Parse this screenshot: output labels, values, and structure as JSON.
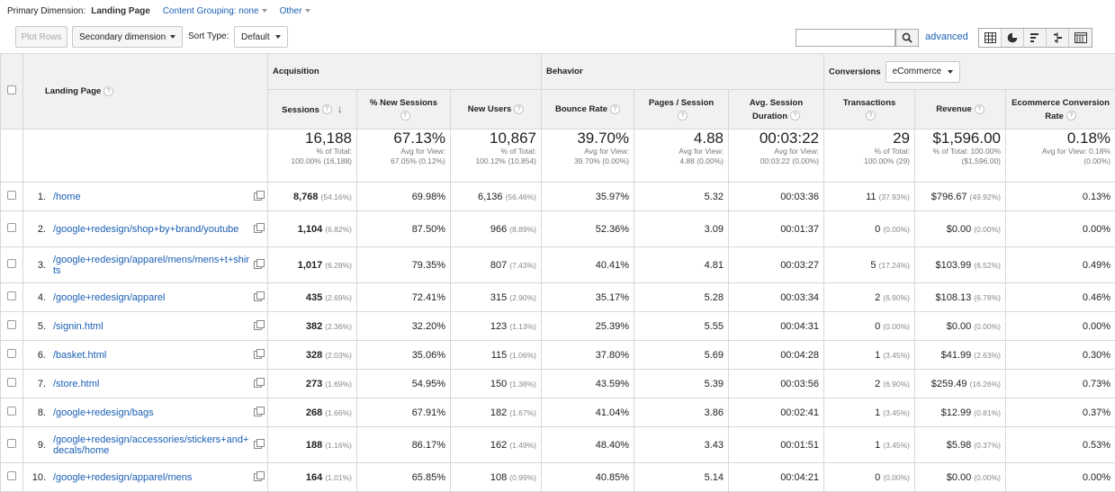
{
  "dimension_bar": {
    "primary_label": "Primary Dimension:",
    "primary_current": "Landing Page",
    "content_grouping": "Content Grouping: none",
    "other": "Other"
  },
  "toolbar": {
    "plot_rows": "Plot Rows",
    "secondary_dimension": "Secondary dimension",
    "sort_type_label": "Sort Type:",
    "sort_type_value": "Default",
    "search_value": "",
    "advanced": "advanced",
    "view_icons": [
      "table-view-icon",
      "pie-view-icon",
      "performance-view-icon",
      "comparison-view-icon",
      "pivot-view-icon"
    ]
  },
  "table": {
    "landing_page_header": "Landing Page",
    "groups": {
      "acquisition": "Acquisition",
      "behavior": "Behavior",
      "conversions": "Conversions",
      "conversions_select": "eCommerce"
    },
    "columns": [
      "Sessions",
      "% New Sessions",
      "New Users",
      "Bounce Rate",
      "Pages / Session",
      "Avg. Session Duration",
      "Transactions",
      "Revenue",
      "Ecommerce Conversion Rate"
    ],
    "totals": [
      {
        "value": "16,188",
        "sub1": "% of Total:",
        "sub2": "100.00% (16,188)"
      },
      {
        "value": "67.13%",
        "sub1": "Avg for View:",
        "sub2": "67.05% (0.12%)"
      },
      {
        "value": "10,867",
        "sub1": "% of Total:",
        "sub2": "100.12% (10,854)"
      },
      {
        "value": "39.70%",
        "sub1": "Avg for View:",
        "sub2": "39.70% (0.00%)"
      },
      {
        "value": "4.88",
        "sub1": "Avg for View:",
        "sub2": "4.88 (0.00%)"
      },
      {
        "value": "00:03:22",
        "sub1": "Avg for View:",
        "sub2": "00:03:22 (0.00%)"
      },
      {
        "value": "29",
        "sub1": "% of Total:",
        "sub2": "100.00% (29)"
      },
      {
        "value": "$1,596.00",
        "sub1": "% of Total: 100.00%",
        "sub2": "($1,596.00)"
      },
      {
        "value": "0.18%",
        "sub1": "Avg for View: 0.18%",
        "sub2": "(0.00%)"
      }
    ],
    "rows": [
      {
        "n": "1.",
        "page": "/home",
        "sessions": "8,768",
        "sessions_pct": "(54.16%)",
        "new_sessions": "69.98%",
        "new_users": "6,136",
        "new_users_pct": "(56.46%)",
        "bounce": "35.97%",
        "pps": "5.32",
        "dur": "00:03:36",
        "tx": "11",
        "tx_pct": "(37.93%)",
        "rev": "$796.67",
        "rev_pct": "(49.92%)",
        "conv": "0.13%"
      },
      {
        "n": "2.",
        "page": "/google+redesign/shop+by+brand/youtube",
        "sessions": "1,104",
        "sessions_pct": "(6.82%)",
        "new_sessions": "87.50%",
        "new_users": "966",
        "new_users_pct": "(8.89%)",
        "bounce": "52.36%",
        "pps": "3.09",
        "dur": "00:01:37",
        "tx": "0",
        "tx_pct": "(0.00%)",
        "rev": "$0.00",
        "rev_pct": "(0.00%)",
        "conv": "0.00%"
      },
      {
        "n": "3.",
        "page": "/google+redesign/apparel/mens/mens+t+shirts",
        "sessions": "1,017",
        "sessions_pct": "(6.28%)",
        "new_sessions": "79.35%",
        "new_users": "807",
        "new_users_pct": "(7.43%)",
        "bounce": "40.41%",
        "pps": "4.81",
        "dur": "00:03:27",
        "tx": "5",
        "tx_pct": "(17.24%)",
        "rev": "$103.99",
        "rev_pct": "(6.52%)",
        "conv": "0.49%"
      },
      {
        "n": "4.",
        "page": "/google+redesign/apparel",
        "sessions": "435",
        "sessions_pct": "(2.69%)",
        "new_sessions": "72.41%",
        "new_users": "315",
        "new_users_pct": "(2.90%)",
        "bounce": "35.17%",
        "pps": "5.28",
        "dur": "00:03:34",
        "tx": "2",
        "tx_pct": "(6.90%)",
        "rev": "$108.13",
        "rev_pct": "(6.78%)",
        "conv": "0.46%"
      },
      {
        "n": "5.",
        "page": "/signin.html",
        "sessions": "382",
        "sessions_pct": "(2.36%)",
        "new_sessions": "32.20%",
        "new_users": "123",
        "new_users_pct": "(1.13%)",
        "bounce": "25.39%",
        "pps": "5.55",
        "dur": "00:04:31",
        "tx": "0",
        "tx_pct": "(0.00%)",
        "rev": "$0.00",
        "rev_pct": "(0.00%)",
        "conv": "0.00%"
      },
      {
        "n": "6.",
        "page": "/basket.html",
        "sessions": "328",
        "sessions_pct": "(2.03%)",
        "new_sessions": "35.06%",
        "new_users": "115",
        "new_users_pct": "(1.06%)",
        "bounce": "37.80%",
        "pps": "5.69",
        "dur": "00:04:28",
        "tx": "1",
        "tx_pct": "(3.45%)",
        "rev": "$41.99",
        "rev_pct": "(2.63%)",
        "conv": "0.30%"
      },
      {
        "n": "7.",
        "page": "/store.html",
        "sessions": "273",
        "sessions_pct": "(1.69%)",
        "new_sessions": "54.95%",
        "new_users": "150",
        "new_users_pct": "(1.38%)",
        "bounce": "43.59%",
        "pps": "5.39",
        "dur": "00:03:56",
        "tx": "2",
        "tx_pct": "(6.90%)",
        "rev": "$259.49",
        "rev_pct": "(16.26%)",
        "conv": "0.73%"
      },
      {
        "n": "8.",
        "page": "/google+redesign/bags",
        "sessions": "268",
        "sessions_pct": "(1.66%)",
        "new_sessions": "67.91%",
        "new_users": "182",
        "new_users_pct": "(1.67%)",
        "bounce": "41.04%",
        "pps": "3.86",
        "dur": "00:02:41",
        "tx": "1",
        "tx_pct": "(3.45%)",
        "rev": "$12.99",
        "rev_pct": "(0.81%)",
        "conv": "0.37%"
      },
      {
        "n": "9.",
        "page": "/google+redesign/accessories/stickers+and+decals/home",
        "sessions": "188",
        "sessions_pct": "(1.16%)",
        "new_sessions": "86.17%",
        "new_users": "162",
        "new_users_pct": "(1.49%)",
        "bounce": "48.40%",
        "pps": "3.43",
        "dur": "00:01:51",
        "tx": "1",
        "tx_pct": "(3.45%)",
        "rev": "$5.98",
        "rev_pct": "(0.37%)",
        "conv": "0.53%"
      },
      {
        "n": "10.",
        "page": "/google+redesign/apparel/mens",
        "sessions": "164",
        "sessions_pct": "(1.01%)",
        "new_sessions": "65.85%",
        "new_users": "108",
        "new_users_pct": "(0.99%)",
        "bounce": "40.85%",
        "pps": "5.14",
        "dur": "00:04:21",
        "tx": "0",
        "tx_pct": "(0.00%)",
        "rev": "$0.00",
        "rev_pct": "(0.00%)",
        "conv": "0.00%"
      }
    ]
  }
}
